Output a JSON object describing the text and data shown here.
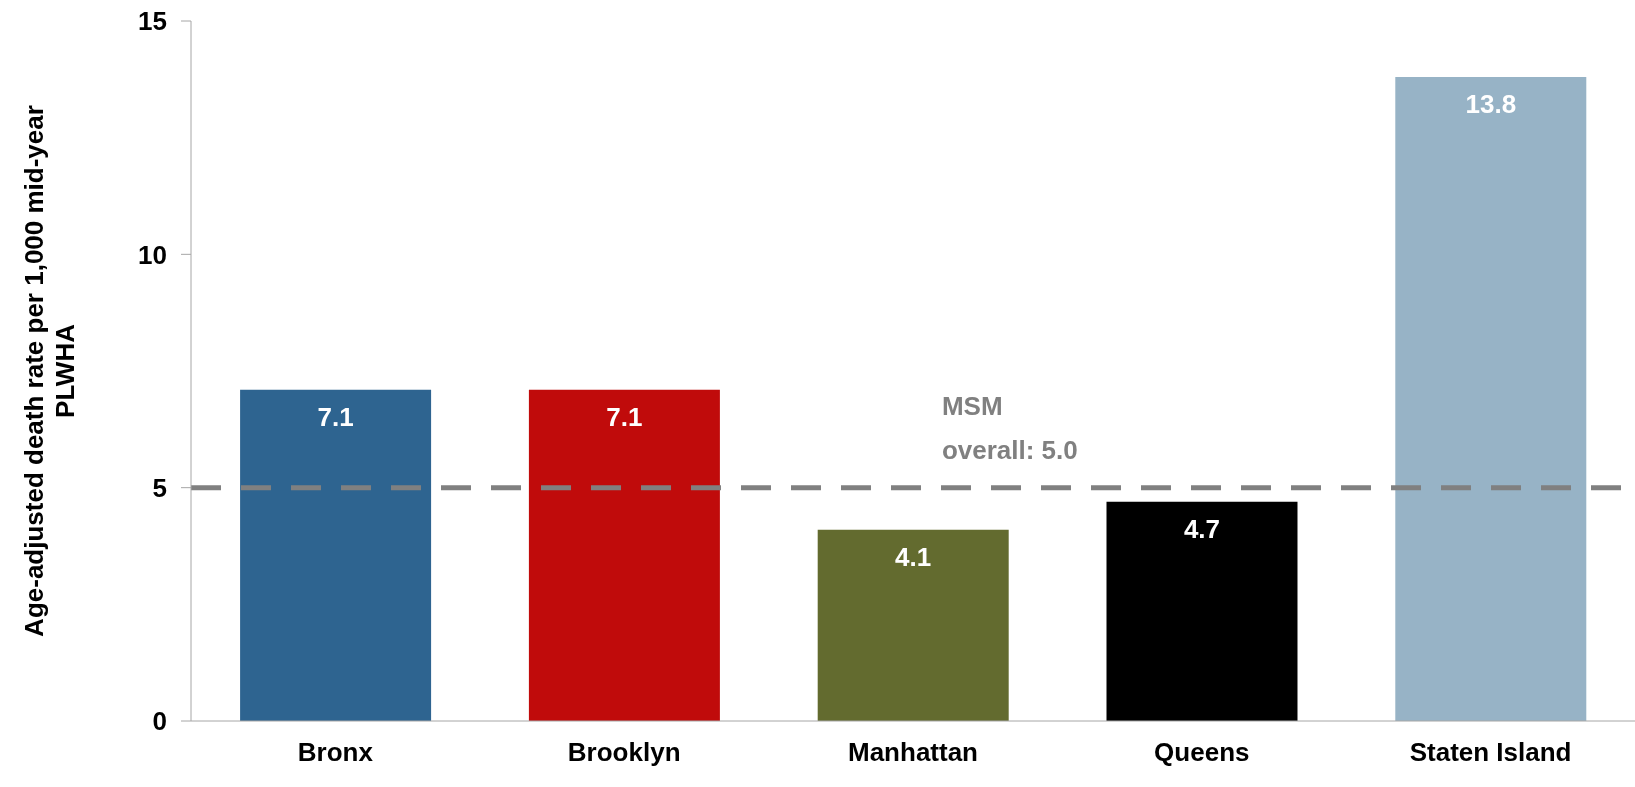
{
  "chart_data": {
    "type": "bar",
    "ylabel": "Age-adjusted death rate per 1,000 mid-year PLWHA",
    "categories": [
      "Bronx",
      "Brooklyn",
      "Manhattan",
      "Queens",
      "Staten Island"
    ],
    "values": [
      7.1,
      7.1,
      4.1,
      4.7,
      13.8
    ],
    "colors": [
      "#2e6490",
      "#c00b0b",
      "#636b2f",
      "#000000",
      "#97b3c6"
    ],
    "ylim": [
      0,
      15
    ],
    "yticks": [
      0,
      5,
      10,
      15
    ],
    "data_labels": true,
    "ref_lines": [
      {
        "axis": "y",
        "value": 5.0,
        "label": "MSM overall: 5.0",
        "color": "#808080",
        "line_style": "dashed"
      }
    ]
  }
}
